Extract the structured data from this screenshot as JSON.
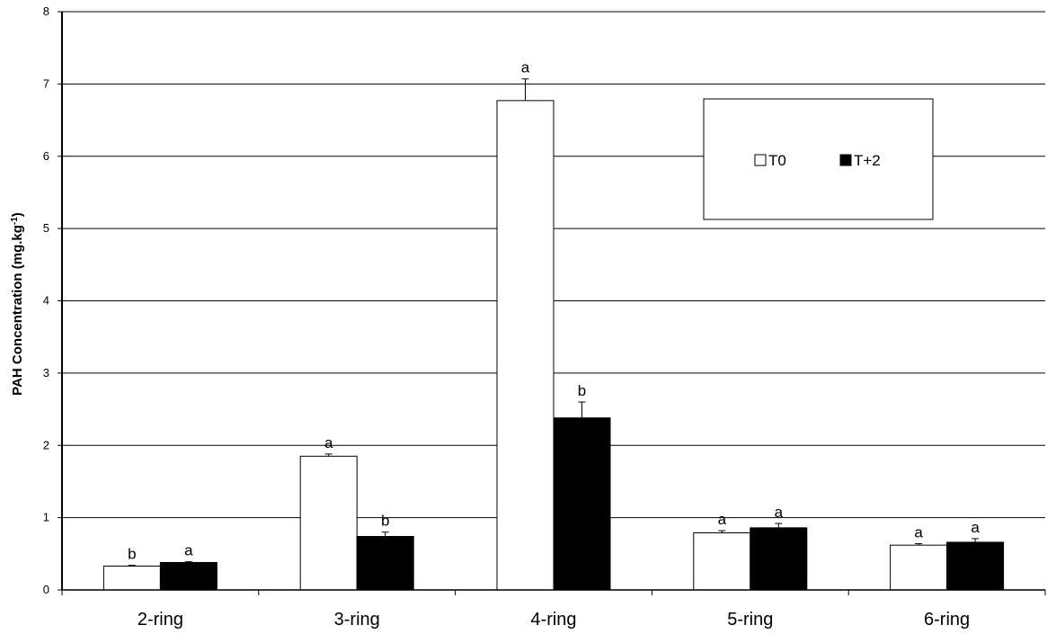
{
  "chart_data": {
    "type": "bar",
    "ylabel": "PAH Concentration (mg.kg",
    "ylabel_sup": "-1",
    "ylabel_close": ")",
    "ylim": [
      0,
      8
    ],
    "yticks": [
      0,
      1,
      2,
      3,
      4,
      5,
      6,
      7,
      8
    ],
    "grid": true,
    "legend_placement": "top-right",
    "categories": [
      "2-ring",
      "3-ring",
      "4-ring",
      "5-ring",
      "6-ring"
    ],
    "series": [
      {
        "name": "T0",
        "color": "#ffffff",
        "values": [
          0.33,
          1.85,
          6.77,
          0.79,
          0.62
        ],
        "errors": [
          0.01,
          0.03,
          0.3,
          0.03,
          0.02
        ],
        "labels": [
          "b",
          "a",
          "a",
          "a",
          "a"
        ]
      },
      {
        "name": "T+2",
        "color": "#000000",
        "values": [
          0.38,
          0.74,
          2.38,
          0.86,
          0.66
        ],
        "errors": [
          0.01,
          0.06,
          0.22,
          0.06,
          0.05
        ],
        "labels": [
          "a",
          "b",
          "b",
          "a",
          "a"
        ]
      }
    ]
  }
}
